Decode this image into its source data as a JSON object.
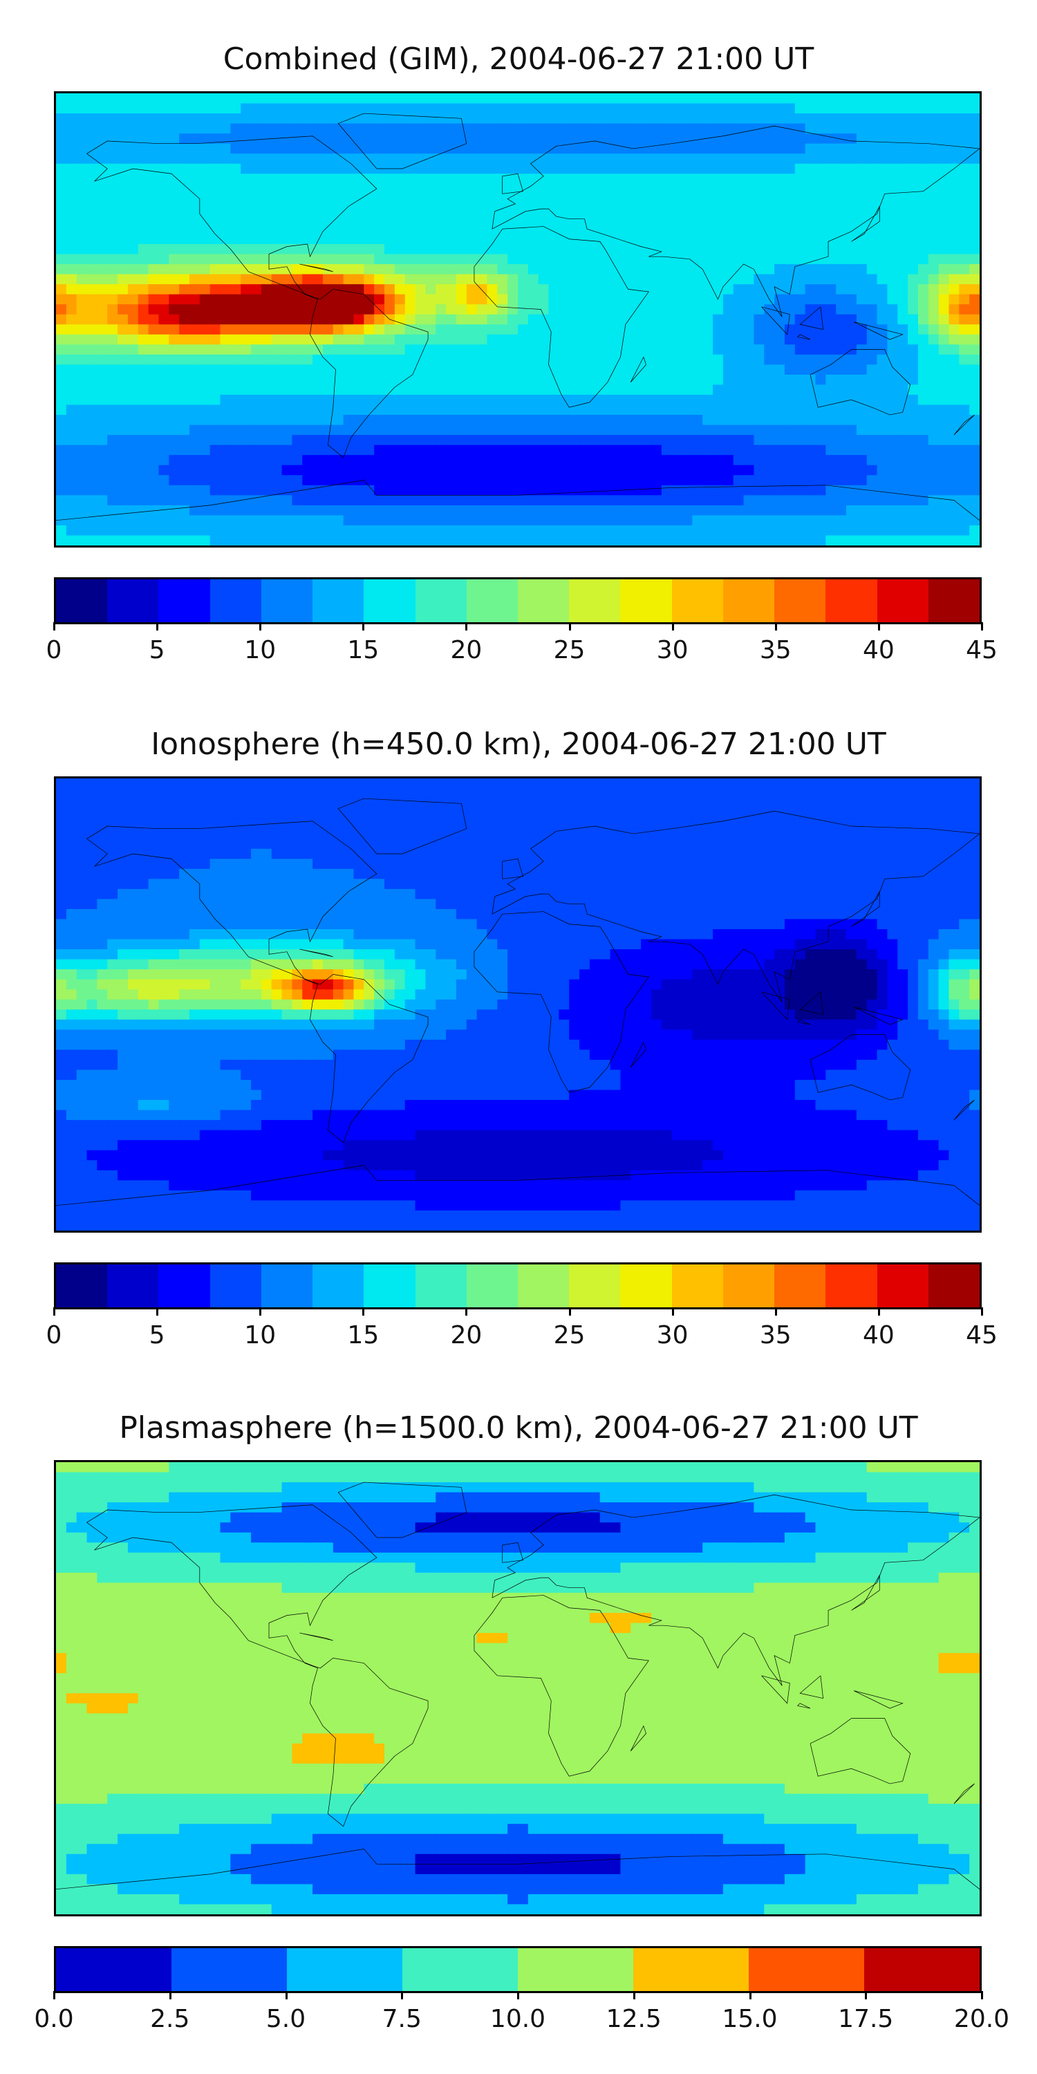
{
  "panels": [
    {
      "title": "Combined (GIM), 2004-06-27 21:00 UT",
      "scale": {
        "min": 0,
        "max": 45,
        "levels": 18,
        "colors": [
          "#00008b",
          "#0000cd",
          "#0000ff",
          "#0047ff",
          "#0080ff",
          "#00b0ff",
          "#00e8f0",
          "#3cf0c0",
          "#6ff590",
          "#a0f560",
          "#d0f530",
          "#f0f000",
          "#ffc000",
          "#ffa000",
          "#ff6a00",
          "#ff3000",
          "#e00000",
          "#a00000"
        ],
        "tick_labels": [
          "0",
          "5",
          "10",
          "15",
          "20",
          "25",
          "30",
          "35",
          "40",
          "45"
        ]
      },
      "field": {
        "base": 16,
        "features": [
          {
            "lon": -100,
            "lat": 8,
            "rx": 70,
            "ry": 14,
            "value": 34
          },
          {
            "lon": -75,
            "lat": 6,
            "rx": 25,
            "ry": 10,
            "value": 42
          },
          {
            "lon": -130,
            "lat": 0,
            "rx": 40,
            "ry": 12,
            "value": 32
          },
          {
            "lon": 175,
            "lat": 5,
            "rx": 15,
            "ry": 14,
            "value": 30
          },
          {
            "lon": -15,
            "lat": 10,
            "rx": 12,
            "ry": 10,
            "value": 27
          },
          {
            "lon": 120,
            "lat": -5,
            "rx": 30,
            "ry": 20,
            "value": 8
          },
          {
            "lon": 0,
            "lat": -60,
            "rx": 180,
            "ry": 20,
            "value": 5
          },
          {
            "lon": 0,
            "lat": 72,
            "rx": 180,
            "ry": 10,
            "value": 10
          }
        ]
      }
    },
    {
      "title": "Ionosphere  (h=450.0 km), 2004-06-27 21:00 UT",
      "scale": {
        "min": 0,
        "max": 45,
        "levels": 18,
        "colors": [
          "#00008b",
          "#0000cd",
          "#0000ff",
          "#0047ff",
          "#0080ff",
          "#00b0ff",
          "#00e8f0",
          "#3cf0c0",
          "#6ff590",
          "#a0f560",
          "#d0f530",
          "#f0f000",
          "#ffc000",
          "#ffa000",
          "#ff6a00",
          "#ff3000",
          "#e00000",
          "#a00000"
        ],
        "tick_labels": [
          "0",
          "5",
          "10",
          "15",
          "20",
          "25",
          "30",
          "35",
          "40",
          "45"
        ]
      },
      "field": {
        "base": 10,
        "features": [
          {
            "lon": -95,
            "lat": 10,
            "rx": 60,
            "ry": 15,
            "value": 24
          },
          {
            "lon": -75,
            "lat": 6,
            "rx": 18,
            "ry": 8,
            "value": 30
          },
          {
            "lon": -150,
            "lat": 5,
            "rx": 30,
            "ry": 12,
            "value": 20
          },
          {
            "lon": 175,
            "lat": 5,
            "rx": 15,
            "ry": 14,
            "value": 20
          },
          {
            "lon": 80,
            "lat": 0,
            "rx": 70,
            "ry": 30,
            "value": 4
          },
          {
            "lon": 125,
            "lat": 10,
            "rx": 20,
            "ry": 20,
            "value": 2
          },
          {
            "lon": -140,
            "lat": -40,
            "rx": 40,
            "ry": 10,
            "value": 14
          },
          {
            "lon": 0,
            "lat": -60,
            "rx": 180,
            "ry": 22,
            "value": 4
          }
        ]
      }
    },
    {
      "title": "Plasmasphere (h=1500.0 km), 2004-06-27 21:00 UT",
      "scale": {
        "min": 0,
        "max": 20,
        "levels": 8,
        "colors": [
          "#0000cd",
          "#0055ff",
          "#00bfff",
          "#40f0c0",
          "#a0f560",
          "#ffc000",
          "#ff5500",
          "#c00000"
        ],
        "tick_labels": [
          "0.0",
          "2.5",
          "5.0",
          "7.5",
          "10.0",
          "12.5",
          "15.0",
          "17.5",
          "20.0"
        ]
      },
      "field": {
        "base": 11,
        "features": [
          {
            "lon": -70,
            "lat": -25,
            "rx": 30,
            "ry": 10,
            "value": 13.5
          },
          {
            "lon": 40,
            "lat": 28,
            "rx": 20,
            "ry": 6,
            "value": 13.5
          },
          {
            "lon": -10,
            "lat": 20,
            "rx": 10,
            "ry": 6,
            "value": 13
          },
          {
            "lon": 175,
            "lat": 10,
            "rx": 20,
            "ry": 8,
            "value": 13
          },
          {
            "lon": -160,
            "lat": -5,
            "rx": 25,
            "ry": 8,
            "value": 13
          },
          {
            "lon": 0,
            "lat": 65,
            "rx": 180,
            "ry": 18,
            "value": 2
          },
          {
            "lon": 0,
            "lat": -70,
            "rx": 180,
            "ry": 22,
            "value": 2
          }
        ]
      }
    }
  ],
  "map_layer": {
    "coastline_color": "#000000",
    "projection": "plate-carree"
  }
}
